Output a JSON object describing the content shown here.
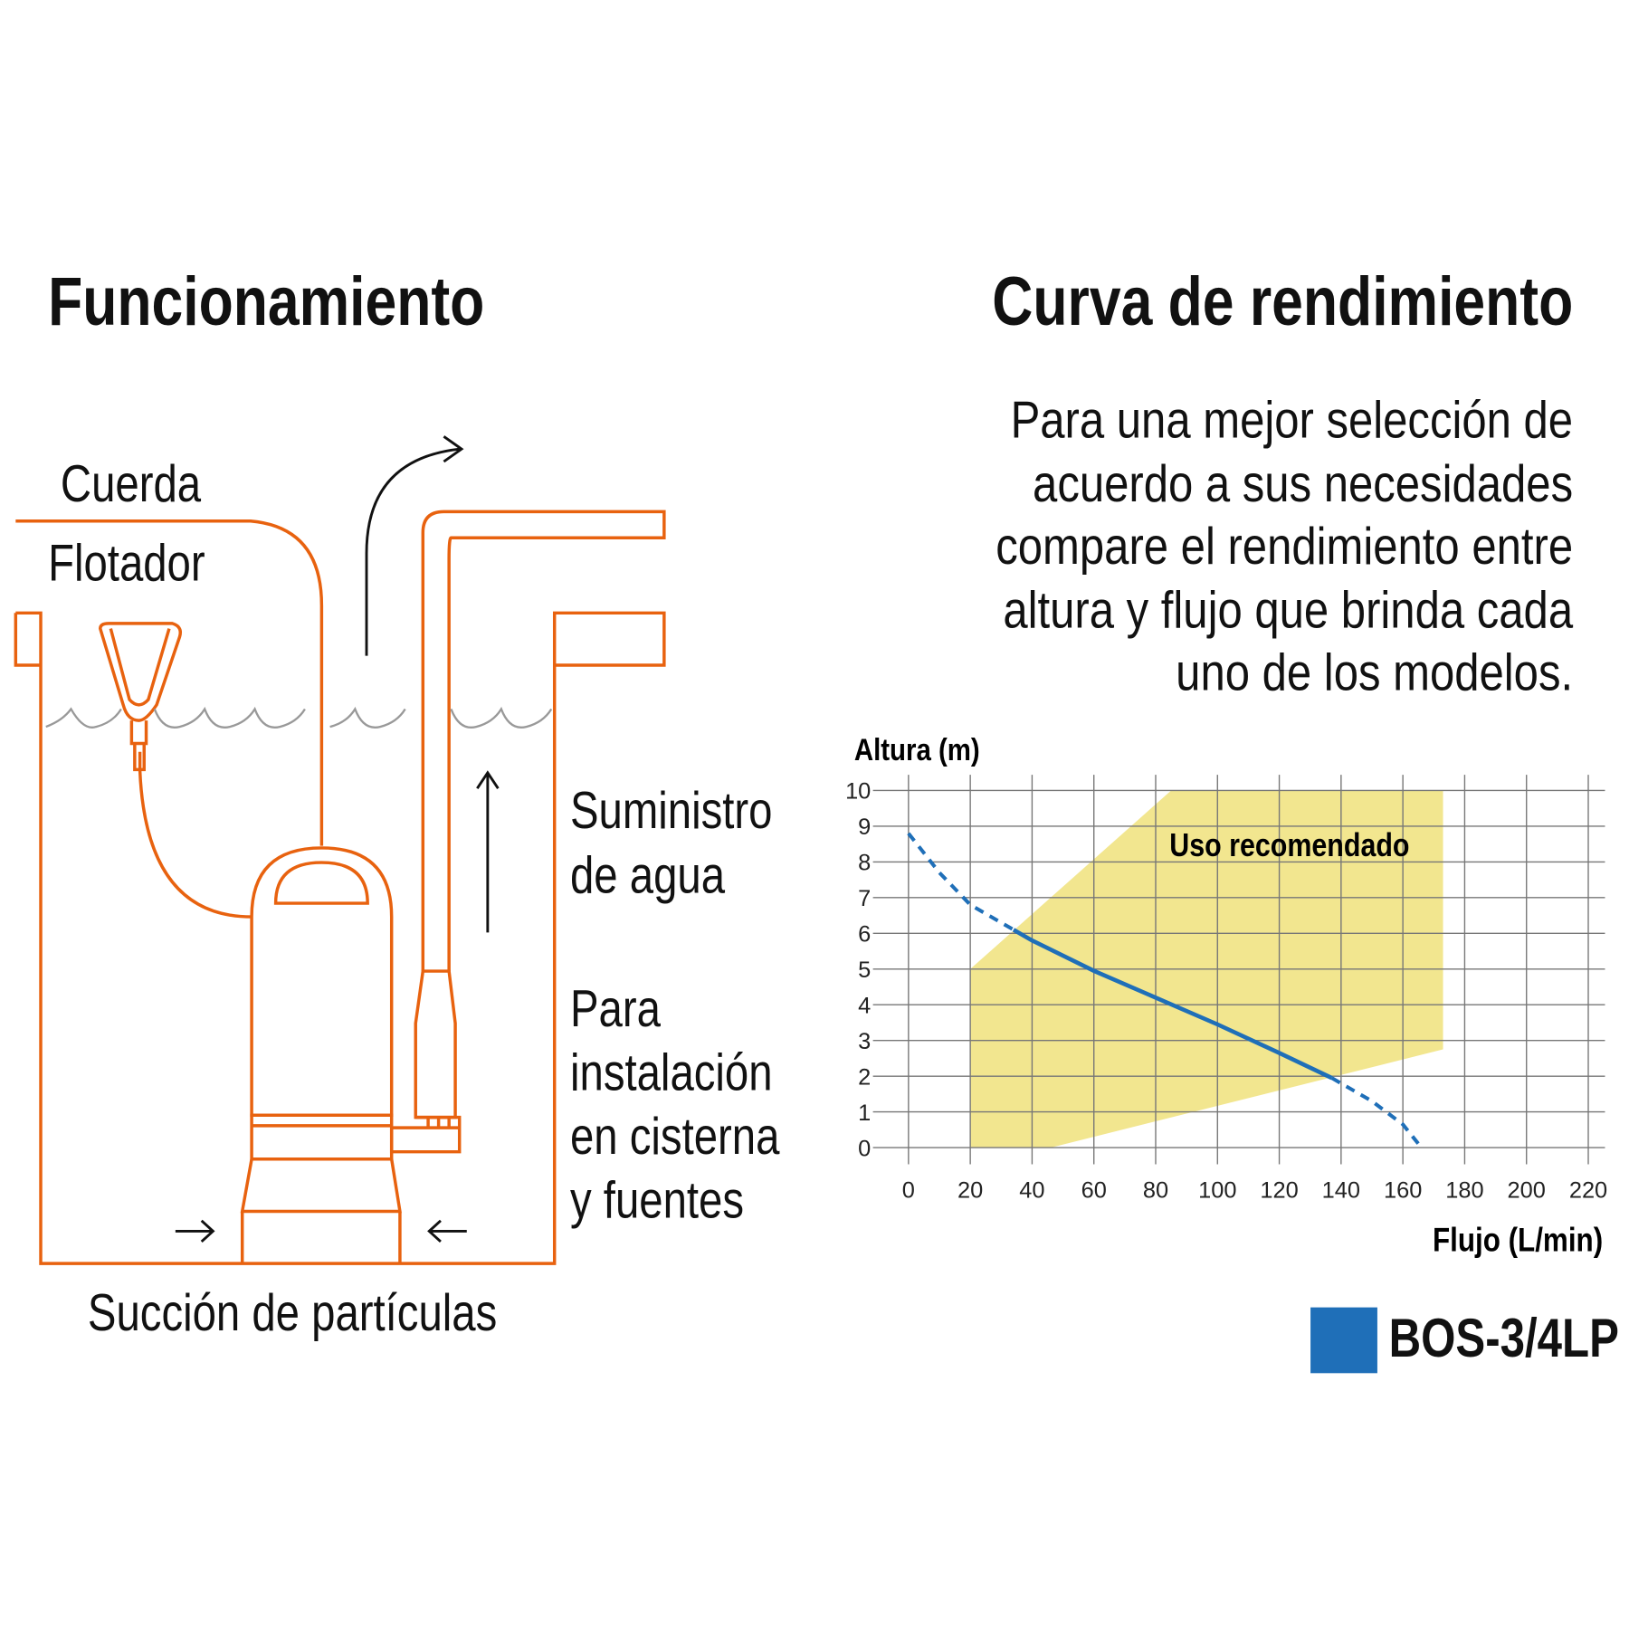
{
  "left": {
    "title": "Funcionamiento",
    "labels": {
      "cuerda": "Cuerda",
      "flotador": "Flotador",
      "suministro_1": "Suministro",
      "suministro_2": "de agua",
      "instalacion_1": "Para",
      "instalacion_2": "instalación",
      "instalacion_3": "en cisterna",
      "instalacion_4": "y fuentes",
      "succion": "Succión de partículas"
    },
    "line_color": "#E8620F"
  },
  "right": {
    "title": "Curva de rendimiento",
    "description": [
      "Para una mejor selección de",
      "acuerdo a sus necesidades",
      "compare el rendimiento entre",
      "altura y flujo que brinda cada",
      "uno de los modelos."
    ],
    "legend": {
      "label": "BOS-3/4LP",
      "color": "#1F6FB8"
    }
  },
  "chart_data": {
    "type": "line",
    "xlabel": "Flujo (L/min)",
    "ylabel": "Altura (m)",
    "xlim": [
      0,
      220
    ],
    "ylim": [
      0,
      10
    ],
    "xticks": [
      0,
      20,
      40,
      60,
      80,
      100,
      120,
      140,
      160,
      180,
      200,
      220
    ],
    "yticks": [
      0,
      1,
      2,
      3,
      4,
      5,
      6,
      7,
      8,
      9,
      10
    ],
    "grid": true,
    "legend_position": "bottom-right",
    "region": {
      "label": "Uso recomendado",
      "color": "#F2E68F",
      "polygon": [
        [
          20,
          0
        ],
        [
          20,
          5
        ],
        [
          85,
          10
        ],
        [
          173,
          10
        ],
        [
          173,
          2.75
        ],
        [
          46,
          0
        ]
      ]
    },
    "series": [
      {
        "name": "BOS-3/4LP",
        "color": "#1F6FB8",
        "x": [
          0,
          10,
          20,
          34,
          40,
          60,
          80,
          100,
          120,
          137,
          150,
          160,
          166
        ],
        "y": [
          8.8,
          7.7,
          6.8,
          6.1,
          5.8,
          4.95,
          4.2,
          3.45,
          2.65,
          1.95,
          1.3,
          0.65,
          0
        ],
        "solid_range": [
          34,
          137
        ]
      }
    ]
  }
}
